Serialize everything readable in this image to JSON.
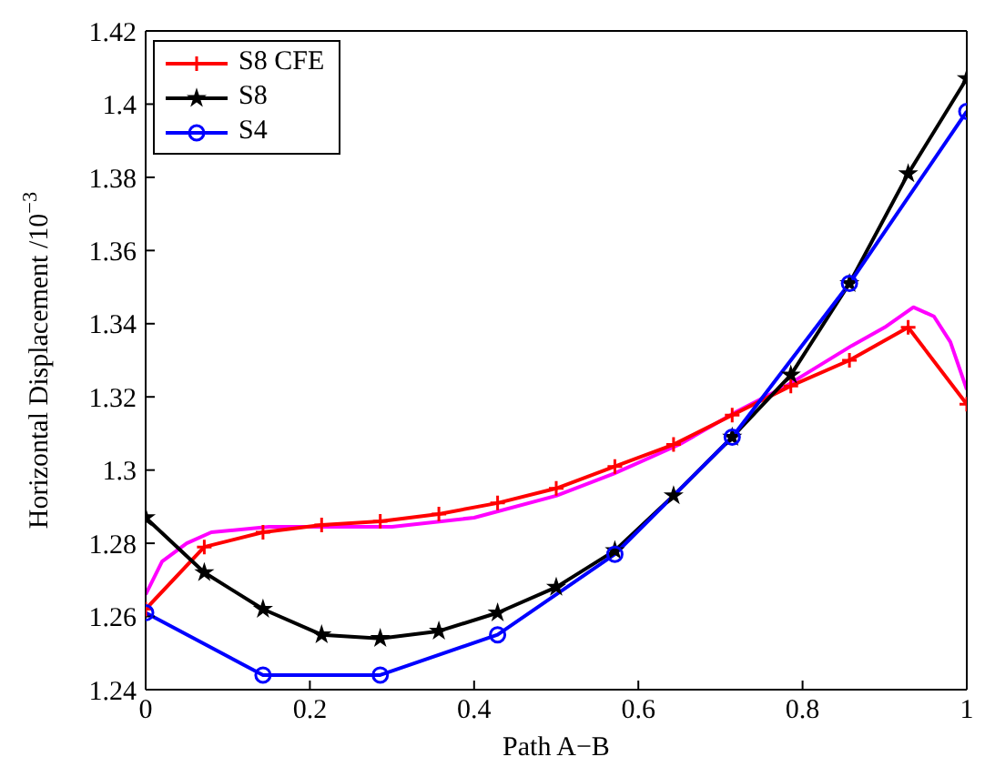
{
  "chart_data": {
    "type": "line",
    "xlabel": "Path A−B",
    "ylabel": "Horizontal Displacement /10$^{−3}$",
    "xlim": [
      0,
      1
    ],
    "ylim": [
      1.24,
      1.42
    ],
    "xticks": [
      0,
      0.2,
      0.4,
      0.6,
      0.8,
      1
    ],
    "yticks": [
      1.24,
      1.26,
      1.28,
      1.3,
      1.32,
      1.34,
      1.36,
      1.38,
      1.4,
      1.42
    ],
    "grid": false,
    "legend": "top left",
    "line_style": "solid",
    "series": [
      {
        "color": "#ff00ff",
        "marker": "none",
        "x": [
          0,
          0.02,
          0.05,
          0.08,
          0.15,
          0.3,
          0.4,
          0.5,
          0.57,
          0.65,
          0.72,
          0.78,
          0.86,
          0.9,
          0.935,
          0.96,
          0.98,
          1
        ],
        "values": [
          1.266,
          1.275,
          1.28,
          1.283,
          1.2845,
          1.2845,
          1.287,
          1.293,
          1.299,
          1.307,
          1.316,
          1.323,
          1.334,
          1.339,
          1.3445,
          1.342,
          1.335,
          1.322
        ]
      },
      {
        "name": "S8 CFE",
        "color": "#ff0000",
        "marker": "cross",
        "x": [
          0,
          0.0714,
          0.1429,
          0.2143,
          0.2857,
          0.3571,
          0.4286,
          0.5,
          0.5714,
          0.6429,
          0.7143,
          0.7857,
          0.8571,
          0.9286,
          1
        ],
        "values": [
          1.262,
          1.279,
          1.283,
          1.285,
          1.286,
          1.288,
          1.291,
          1.295,
          1.301,
          1.307,
          1.315,
          1.323,
          1.33,
          1.339,
          1.318
        ]
      },
      {
        "name": "S8",
        "color": "#000000",
        "marker": "star",
        "x": [
          0,
          0.0714,
          0.1429,
          0.2143,
          0.2857,
          0.3571,
          0.4286,
          0.5,
          0.5714,
          0.6429,
          0.7143,
          0.7857,
          0.8571,
          0.9286,
          1
        ],
        "values": [
          1.287,
          1.272,
          1.262,
          1.255,
          1.254,
          1.256,
          1.261,
          1.268,
          1.278,
          1.293,
          1.309,
          1.326,
          1.351,
          1.381,
          1.407
        ]
      },
      {
        "name": "S4",
        "color": "#0000ff",
        "marker": "circle",
        "x": [
          0,
          0.1429,
          0.2857,
          0.4286,
          0.5714,
          0.7143,
          0.8571,
          1
        ],
        "values": [
          1.261,
          1.244,
          1.244,
          1.255,
          1.277,
          1.309,
          1.351,
          1.398
        ]
      }
    ]
  }
}
